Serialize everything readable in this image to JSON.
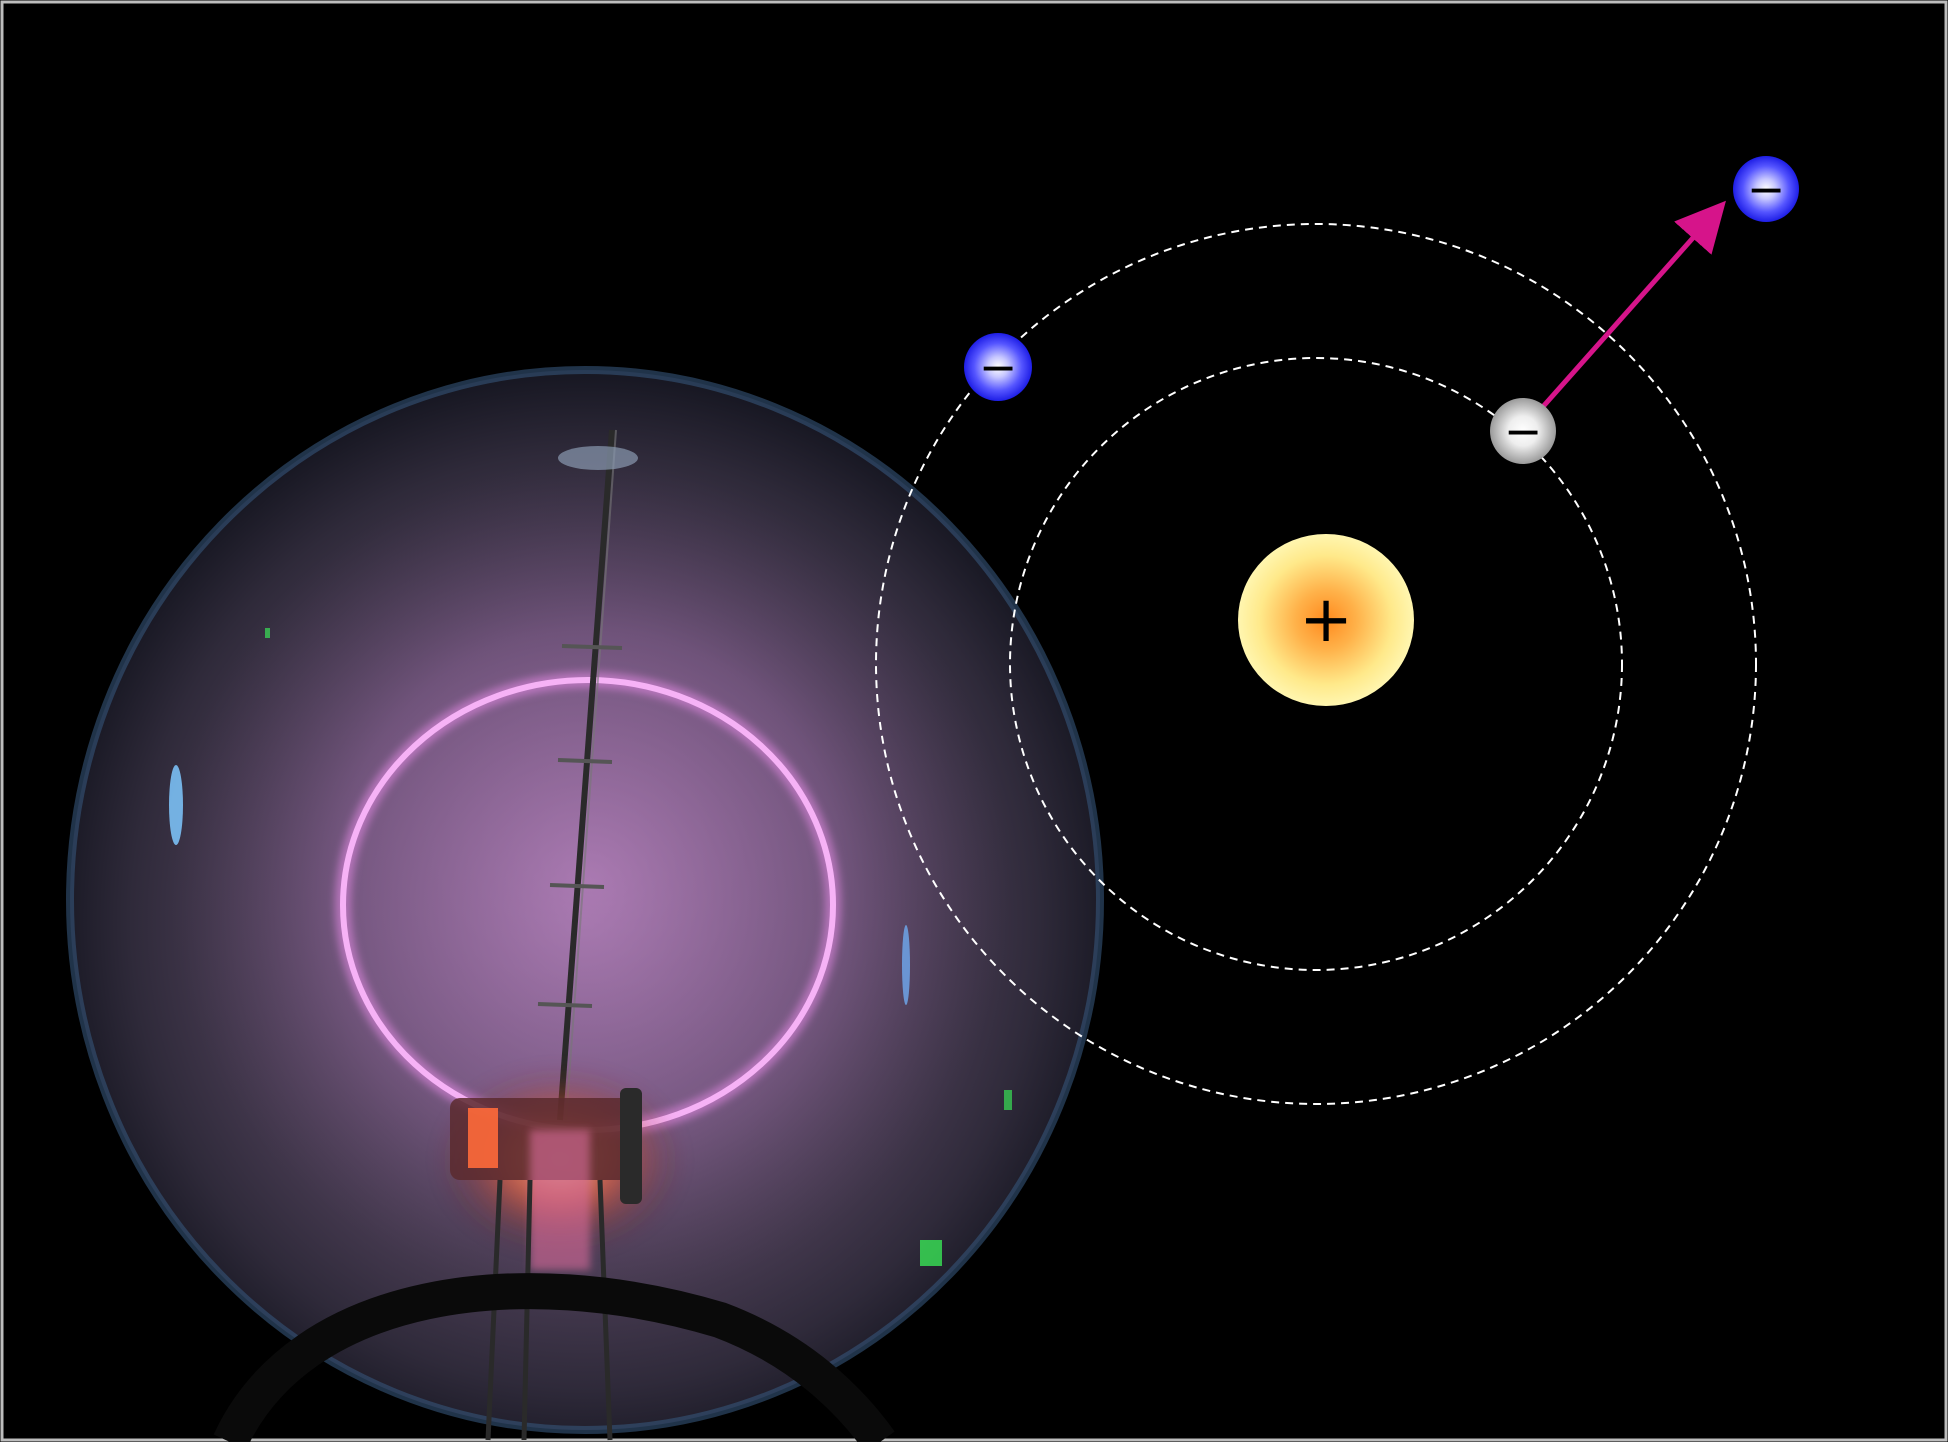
{
  "scene": {
    "background": "#000000",
    "border": "#bdbdbd"
  },
  "photo": {
    "subject": "electron-beam-tube",
    "glass_color": "#2a2a34",
    "glow_color": "#e88be8",
    "ring_color": "#f2a4f2",
    "heater_color": "#ff6a3a"
  },
  "diagram": {
    "orbit_color": "#ffffff",
    "nucleus": {
      "sign": "+",
      "inner_color": "#ff9a2e",
      "outer_color": "#fff6a8"
    },
    "electrons": [
      {
        "name": "outer-shell-electron",
        "sign": "−",
        "color": "#3b3bff",
        "state": "bound"
      },
      {
        "name": "inner-shell-electron",
        "sign": "−",
        "color": "#d9d9d9",
        "state": "bound"
      },
      {
        "name": "ejected-electron",
        "sign": "−",
        "color": "#3b3bff",
        "state": "free"
      }
    ],
    "arrow_color": "#d6148a"
  }
}
